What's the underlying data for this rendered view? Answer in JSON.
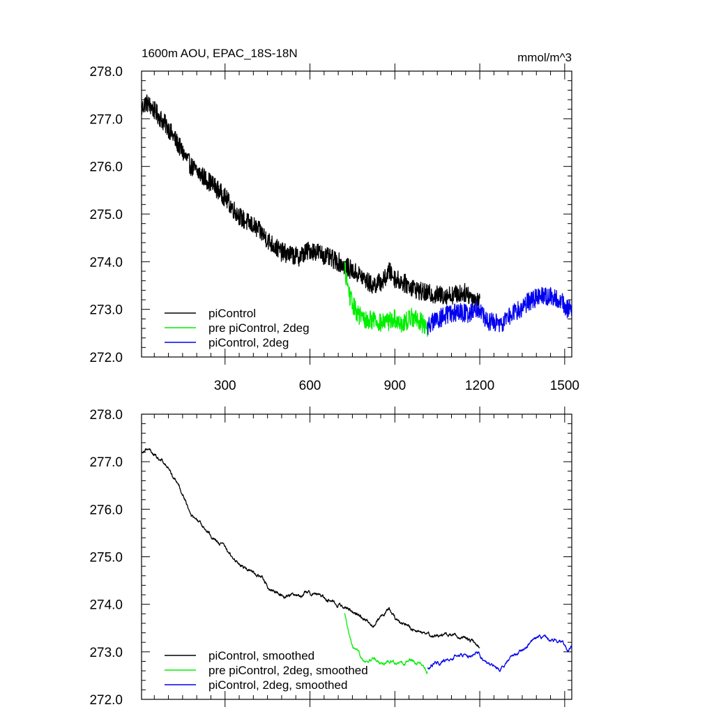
{
  "title_left": "1600m AOU, EPAC_18S-18N",
  "title_right": "mmol/m^3",
  "colors": {
    "piControl": "#000000",
    "pre_piControl_2deg": "#00ee00",
    "piControl_2deg": "#0000ee"
  },
  "chart_data": [
    {
      "type": "line",
      "xlim": [
        5,
        1525
      ],
      "ylim": [
        272.0,
        278.0
      ],
      "x_ticks": [
        300,
        600,
        900,
        1200,
        1500
      ],
      "x_tick_labels": [
        "300",
        "600",
        "900",
        "1200",
        "1500"
      ],
      "y_ticks": [
        272.0,
        273.0,
        274.0,
        275.0,
        276.0,
        277.0,
        278.0
      ],
      "y_tick_labels": [
        "272.0",
        "273.0",
        "274.0",
        "275.0",
        "276.0",
        "277.0",
        "278.0"
      ],
      "legend_position": "bottom-left",
      "noise_amplitude": 0.2,
      "series": [
        {
          "name": "piControl",
          "color": "#000000",
          "x": [
            5,
            20,
            40,
            60,
            80,
            100,
            120,
            140,
            160,
            180,
            200,
            230,
            260,
            300,
            330,
            360,
            400,
            430,
            460,
            500,
            530,
            560,
            600,
            630,
            660,
            700,
            740,
            780,
            820,
            860,
            880,
            900,
            950,
            1000,
            1050,
            1100,
            1150,
            1200
          ],
          "y": [
            277.2,
            277.35,
            277.25,
            277.1,
            276.95,
            276.8,
            276.6,
            276.4,
            276.2,
            276.0,
            275.9,
            275.75,
            275.6,
            275.35,
            275.1,
            274.9,
            274.75,
            274.6,
            274.4,
            274.2,
            274.15,
            274.1,
            274.25,
            274.2,
            274.1,
            274.0,
            273.85,
            273.7,
            273.5,
            273.6,
            273.8,
            273.65,
            273.5,
            273.35,
            273.3,
            273.3,
            273.35,
            273.15
          ]
        },
        {
          "name": "pre piControl, 2deg",
          "color": "#00ee00",
          "x": [
            722,
            730,
            740,
            750,
            770,
            800,
            830,
            850,
            880,
            900,
            930,
            960,
            990,
            1015
          ],
          "y": [
            273.9,
            273.6,
            273.3,
            273.1,
            272.9,
            272.75,
            272.8,
            272.7,
            272.75,
            272.8,
            272.7,
            272.85,
            272.75,
            272.6
          ]
        },
        {
          "name": "piControl, 2deg",
          "color": "#0000ee",
          "x": [
            1015,
            1040,
            1070,
            1100,
            1130,
            1160,
            1190,
            1210,
            1230,
            1250,
            1270,
            1290,
            1310,
            1340,
            1370,
            1400,
            1430,
            1460,
            1490,
            1510,
            1525
          ],
          "y": [
            272.65,
            272.75,
            272.85,
            272.9,
            272.95,
            272.9,
            273.05,
            272.9,
            272.7,
            272.75,
            272.65,
            272.8,
            272.9,
            273.0,
            273.15,
            273.25,
            273.3,
            273.25,
            273.15,
            273.0,
            273.05
          ]
        }
      ]
    },
    {
      "type": "line",
      "xlim": [
        5,
        1525
      ],
      "ylim": [
        272.0,
        278.0
      ],
      "x_ticks": [
        300,
        600,
        900,
        1200,
        1500
      ],
      "y_ticks": [
        272.0,
        273.0,
        274.0,
        275.0,
        276.0,
        277.0,
        278.0
      ],
      "y_tick_labels": [
        "272.0",
        "273.0",
        "274.0",
        "275.0",
        "276.0",
        "277.0",
        "278.0"
      ],
      "legend_position": "bottom-left",
      "noise_amplitude": 0.04,
      "series": [
        {
          "name": "piControl, smoothed",
          "color": "#000000",
          "x": [
            5,
            20,
            40,
            60,
            80,
            100,
            120,
            140,
            160,
            180,
            200,
            230,
            260,
            300,
            330,
            360,
            400,
            430,
            460,
            500,
            530,
            560,
            600,
            630,
            660,
            700,
            740,
            780,
            820,
            860,
            880,
            900,
            950,
            1000,
            1050,
            1100,
            1150,
            1200
          ],
          "y": [
            277.2,
            277.3,
            277.2,
            277.1,
            277.0,
            276.85,
            276.65,
            276.45,
            276.2,
            275.85,
            275.75,
            275.6,
            275.4,
            275.2,
            274.95,
            274.8,
            274.7,
            274.55,
            274.3,
            274.2,
            274.2,
            274.2,
            274.25,
            274.2,
            274.1,
            274.0,
            273.9,
            273.75,
            273.55,
            273.75,
            273.9,
            273.7,
            273.5,
            273.4,
            273.35,
            273.35,
            273.3,
            273.1
          ]
        },
        {
          "name": "pre piControl, 2deg, smoothed",
          "color": "#00ee00",
          "x": [
            722,
            730,
            740,
            750,
            770,
            800,
            830,
            850,
            880,
            900,
            930,
            960,
            990,
            1015
          ],
          "y": [
            273.8,
            273.55,
            273.3,
            273.1,
            272.95,
            272.8,
            272.85,
            272.75,
            272.8,
            272.8,
            272.75,
            272.85,
            272.75,
            272.6
          ]
        },
        {
          "name": "piControl, 2deg, smoothed",
          "color": "#0000ee",
          "x": [
            1015,
            1040,
            1070,
            1100,
            1130,
            1160,
            1190,
            1210,
            1230,
            1250,
            1270,
            1290,
            1310,
            1340,
            1370,
            1400,
            1430,
            1460,
            1490,
            1510,
            1525
          ],
          "y": [
            272.65,
            272.75,
            272.8,
            272.85,
            272.95,
            272.9,
            273.0,
            272.85,
            272.75,
            272.7,
            272.65,
            272.75,
            272.9,
            273.0,
            273.15,
            273.3,
            273.3,
            273.25,
            273.25,
            273.0,
            273.1
          ]
        }
      ]
    }
  ]
}
